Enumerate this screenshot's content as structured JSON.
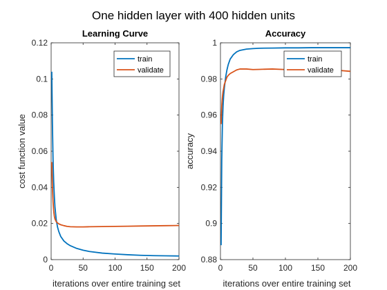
{
  "figure": {
    "suptitle": "One hidden layer with 400 hidden units"
  },
  "colors": {
    "train": "#0072BD",
    "validate": "#D95319",
    "axis": "#262626",
    "legend_border": "#262626"
  },
  "chart_data": [
    {
      "type": "line",
      "title": "Learning Curve",
      "xlabel": "iterations over entire training set",
      "ylabel": "cost function value",
      "xlim": [
        0,
        200
      ],
      "ylim": [
        0,
        0.12
      ],
      "xticks": [
        0,
        50,
        100,
        150,
        200
      ],
      "yticks": [
        0,
        0.02,
        0.04,
        0.06,
        0.08,
        0.1,
        0.12
      ],
      "ytick_labels": [
        "0",
        "0.02",
        "0.04",
        "0.06",
        "0.08",
        "0.1",
        "0.12"
      ],
      "grid": false,
      "legend": "top-right",
      "series": [
        {
          "name": "train",
          "x": [
            1,
            2,
            3,
            4,
            5,
            6,
            8,
            10,
            12,
            15,
            20,
            25,
            30,
            40,
            50,
            60,
            80,
            100,
            120,
            140,
            160,
            180,
            200
          ],
          "y": [
            0.104,
            0.075,
            0.055,
            0.043,
            0.035,
            0.029,
            0.022,
            0.018,
            0.0155,
            0.0128,
            0.0103,
            0.0088,
            0.0077,
            0.0062,
            0.0052,
            0.0045,
            0.0036,
            0.0031,
            0.0027,
            0.0024,
            0.0022,
            0.0021,
            0.002
          ]
        },
        {
          "name": "validate",
          "x": [
            1,
            2,
            3,
            4,
            5,
            6,
            8,
            10,
            12,
            15,
            20,
            25,
            30,
            40,
            50,
            60,
            80,
            100,
            120,
            140,
            160,
            180,
            200
          ],
          "y": [
            0.054,
            0.04,
            0.032,
            0.027,
            0.024,
            0.0225,
            0.021,
            0.0203,
            0.0198,
            0.0193,
            0.0188,
            0.0184,
            0.0182,
            0.0181,
            0.0181,
            0.0182,
            0.0183,
            0.0184,
            0.0185,
            0.0186,
            0.0187,
            0.0188,
            0.0189
          ]
        }
      ]
    },
    {
      "type": "line",
      "title": "Accuracy",
      "xlabel": "iterations over entire training set",
      "ylabel": "accuracy",
      "xlim": [
        0,
        200
      ],
      "ylim": [
        0.88,
        1
      ],
      "xticks": [
        0,
        50,
        100,
        150,
        200
      ],
      "yticks": [
        0.88,
        0.9,
        0.92,
        0.94,
        0.96,
        0.98,
        1
      ],
      "ytick_labels": [
        "0.88",
        "0.9",
        "0.92",
        "0.94",
        "0.96",
        "0.98",
        "1"
      ],
      "grid": false,
      "legend": "top-right",
      "series": [
        {
          "name": "train",
          "x": [
            1,
            2,
            3,
            4,
            5,
            6,
            8,
            10,
            12,
            15,
            20,
            25,
            30,
            40,
            50,
            60,
            80,
            100,
            120,
            140,
            160,
            180,
            200
          ],
          "y": [
            0.888,
            0.935,
            0.955,
            0.965,
            0.971,
            0.975,
            0.981,
            0.985,
            0.988,
            0.991,
            0.9935,
            0.995,
            0.9958,
            0.9965,
            0.9968,
            0.997,
            0.9971,
            0.9972,
            0.9972,
            0.9973,
            0.9973,
            0.9973,
            0.9973
          ]
        },
        {
          "name": "validate",
          "x": [
            1,
            2,
            3,
            4,
            5,
            6,
            8,
            10,
            12,
            15,
            20,
            25,
            30,
            40,
            50,
            60,
            80,
            100,
            120,
            140,
            160,
            180,
            200
          ],
          "y": [
            0.955,
            0.965,
            0.97,
            0.973,
            0.975,
            0.977,
            0.979,
            0.981,
            0.982,
            0.983,
            0.984,
            0.985,
            0.9855,
            0.9855,
            0.9852,
            0.9853,
            0.9855,
            0.9852,
            0.985,
            0.9852,
            0.985,
            0.9848,
            0.9842
          ]
        }
      ]
    }
  ]
}
